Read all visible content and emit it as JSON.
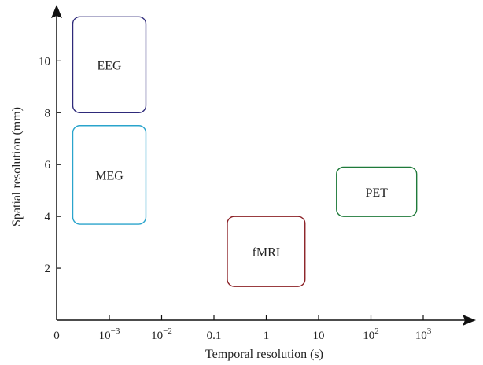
{
  "chart_data": {
    "type": "region",
    "xlabel": "Temporal resolution (s)",
    "ylabel": "Spatial resolution (mm)",
    "x_scale": "log",
    "x_ticks": [
      {
        "label": "0"
      },
      {
        "label": "10",
        "sup": "−3",
        "value": 0.001
      },
      {
        "label": "10",
        "sup": "−2",
        "value": 0.01
      },
      {
        "label": "0.1",
        "value": 0.1
      },
      {
        "label": "1",
        "value": 1
      },
      {
        "label": "10",
        "value": 10
      },
      {
        "label": "10",
        "sup": "2",
        "value": 100
      },
      {
        "label": "10",
        "sup": "3",
        "value": 1000
      }
    ],
    "y_ticks": [
      2,
      4,
      6,
      8,
      10
    ],
    "ylim": [
      0,
      11.8
    ],
    "grid": false,
    "regions": [
      {
        "label": "EEG",
        "color": "#2e2a7a",
        "x_range": [
          0.0002,
          0.005
        ],
        "y_range": [
          8.0,
          11.7
        ]
      },
      {
        "label": "MEG",
        "color": "#2aa4cc",
        "x_range": [
          0.0002,
          0.005
        ],
        "y_range": [
          3.7,
          7.5
        ]
      },
      {
        "label": "fMRI",
        "color": "#8b2026",
        "x_range": [
          0.18,
          5.5
        ],
        "y_range": [
          1.3,
          4.0
        ]
      },
      {
        "label": "PET",
        "color": "#1f7a3a",
        "x_range": [
          22,
          750
        ],
        "y_range": [
          4.0,
          5.9
        ]
      }
    ]
  }
}
